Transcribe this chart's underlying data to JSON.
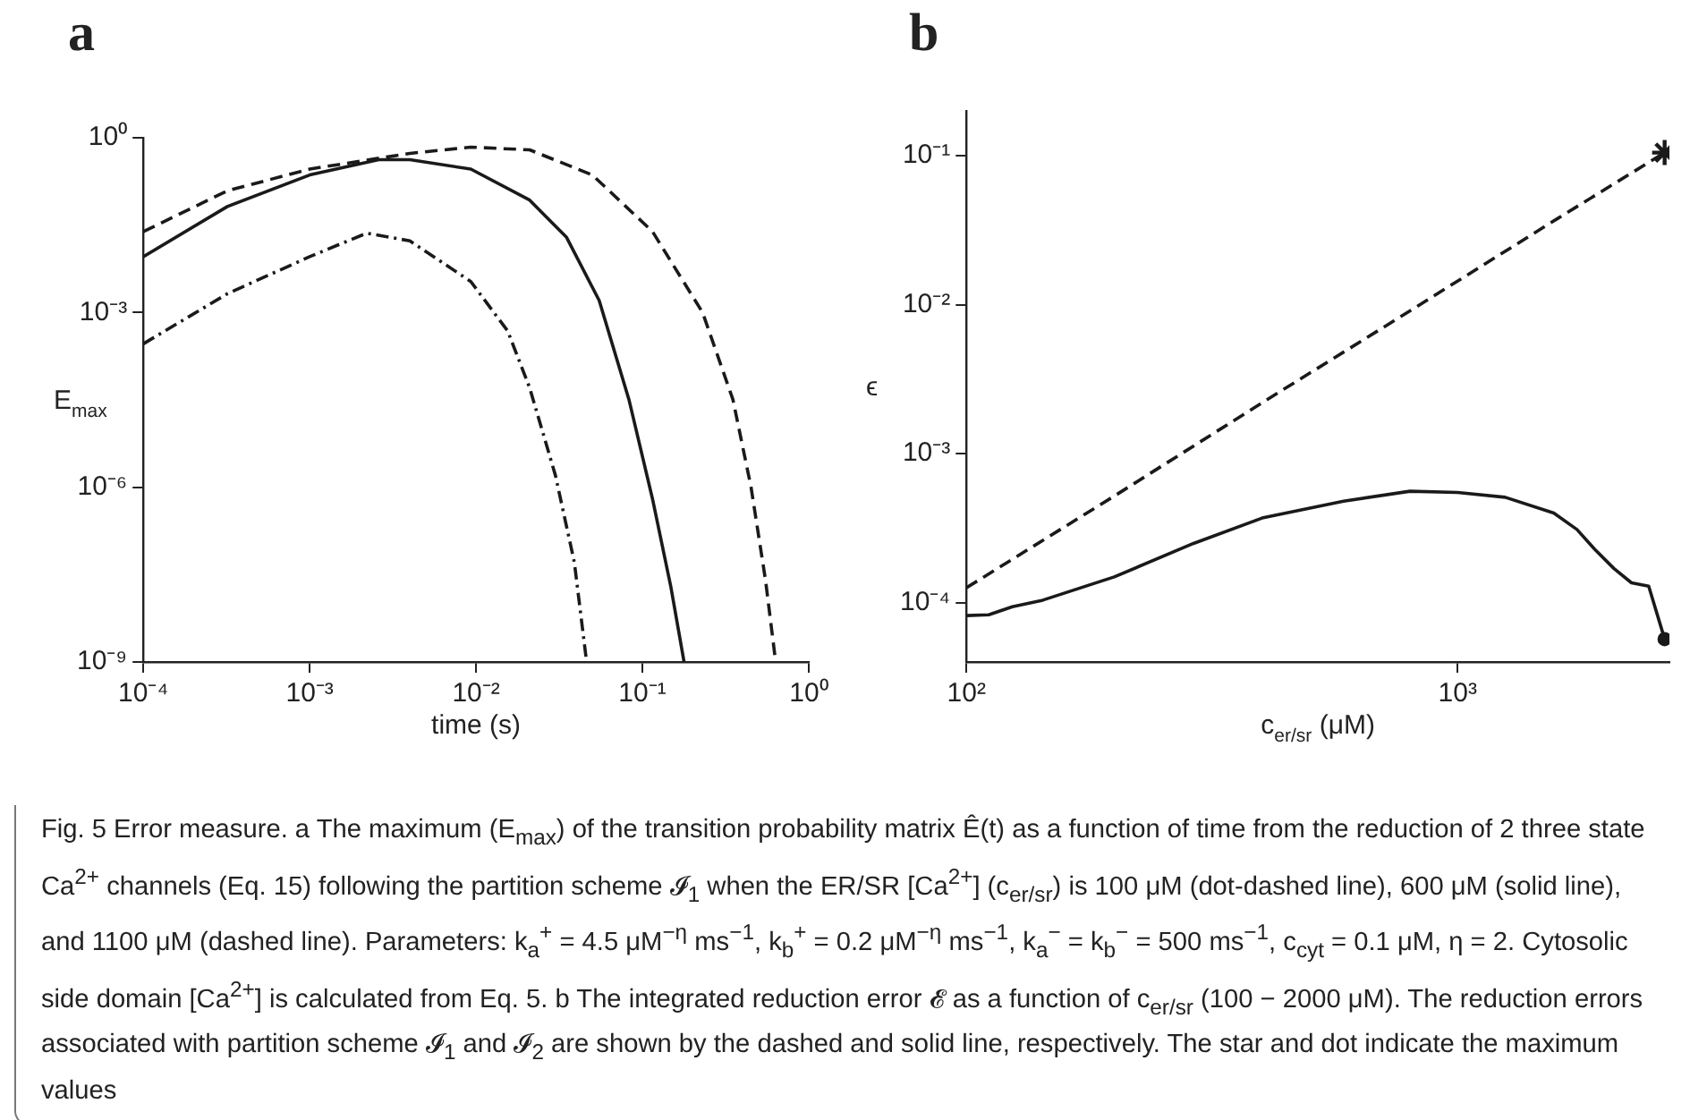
{
  "chart_data": [
    {
      "type": "line",
      "title": "a",
      "xlabel": "time (s)",
      "ylabel": "E$_{max}$",
      "log": "xy",
      "grid": false,
      "legend": false,
      "xlim": [
        0.0001,
        1
      ],
      "xticks": [
        {
          "value": 0.0001,
          "label": "10⁻⁴"
        },
        {
          "value": 0.001,
          "label": "10⁻³"
        },
        {
          "value": 0.01,
          "label": "10⁻²"
        },
        {
          "value": 0.1,
          "label": "10⁻¹"
        },
        {
          "value": 1,
          "label": "10⁰"
        }
      ],
      "ylim": [
        1e-09,
        1
      ],
      "yticks": [
        {
          "value": 1e-09,
          "label": "10⁻⁹"
        },
        {
          "value": 1e-06,
          "label": "10⁻⁶"
        },
        {
          "value": 0.001,
          "label": "10⁻³"
        },
        {
          "value": 1,
          "label": "10⁰"
        }
      ],
      "series": [
        {
          "color": "#1a1a1a",
          "line_style": "dashed",
          "x": [
            0.0001,
            0.00032,
            0.001,
            0.004,
            0.0093,
            0.021,
            0.05,
            0.115,
            0.23,
            0.35,
            0.45,
            0.55,
            0.63
          ],
          "values": [
            0.0245,
            0.123,
            0.29,
            0.54,
            0.69,
            0.62,
            0.23,
            0.0245,
            0.001,
            3.2e-05,
            1e-06,
            2.5e-08,
            1.1e-09
          ]
        },
        {
          "color": "#1a1a1a",
          "line_style": "solid",
          "x": [
            0.0001,
            0.00032,
            0.001,
            0.0026,
            0.004,
            0.0093,
            0.021,
            0.035,
            0.055,
            0.083,
            0.115,
            0.148,
            0.178
          ],
          "values": [
            0.0091,
            0.066,
            0.23,
            0.42,
            0.42,
            0.29,
            0.085,
            0.0195,
            0.0016,
            3.2e-05,
            6.3e-07,
            2e-08,
            1e-09
          ]
        },
        {
          "color": "#1a1a1a",
          "line_style": "dotted",
          "x": [
            0.0001,
            0.00032,
            0.001,
            0.0022,
            0.004,
            0.0093,
            0.0155,
            0.021,
            0.03,
            0.039,
            0.046
          ],
          "values": [
            0.00029,
            0.0021,
            0.0091,
            0.023,
            0.017,
            0.0034,
            0.00048,
            5.1e-05,
            1.6e-06,
            5.1e-08,
            1.1e-09
          ]
        }
      ],
      "annotations": [
        "Fig. 5 Error measure. a The maximum (E$_{max}$) of the transition probability matrix Ê(t) as a function of time from the reduction of 2 three state Ca$^{2+}$ channels (Eq. 15) following the partition scheme 𝓘$_{1}$ when the ER/SR [Ca$^{2+}$] (c$_{er/sr}$) is 100 μM (dot-dashed line), 600 μM (solid line), and 1100 μM (dashed line). Parameters: k$_{a}$$^{+}$ = 4.5 μM$^{−η}$ ms$^{−1}$, k$_{b}$$^{+}$ = 0.2 μM$^{−η}$ ms$^{−1}$, k$_{a}$$^{−}$ = k$_{b}$$^{−}$ = 500 ms$^{−1}$, c$_{cyt}$ = 0.1 μM, η = 2. Cytosolic side domain [Ca$^{2+}$] is calculated from Eq. 5. b The integrated reduction error 𝓔 as a function of c$_{er/sr}$ (100 − 2000 μM). The reduction errors associated with partition scheme 𝓘$_{1}$ and 𝓘$_{2}$ are shown by the dashed and solid line, respectively. The star and dot indicate the maximum values"
      ]
    },
    {
      "type": "line",
      "title": "b",
      "xlabel": "c$_{er/sr}$ (μM)",
      "ylabel": "ϵ",
      "log": "xy",
      "grid": false,
      "legend": false,
      "xlim": [
        100,
        2700
      ],
      "xticks": [
        {
          "value": 100,
          "label": "10²"
        },
        {
          "value": 1000,
          "label": "10³"
        }
      ],
      "ylim": [
        4e-05,
        0.2
      ],
      "yticks": [
        {
          "value": 0.0001,
          "label": "10⁻⁴"
        },
        {
          "value": 0.001,
          "label": "10⁻³"
        },
        {
          "value": 0.01,
          "label": "10⁻²"
        },
        {
          "value": 0.1,
          "label": "10⁻¹"
        }
      ],
      "series": [
        {
          "color": "#1a1a1a",
          "line_style": "dashed",
          "x": [
            100,
            200,
            400,
            800,
            1600,
            2640
          ],
          "values": [
            0.000126,
            0.00052,
            0.0022,
            0.0091,
            0.038,
            0.105
          ]
        },
        {
          "color": "#1a1a1a",
          "line_style": "solid",
          "x": [
            100,
            111,
            124,
            143,
            200,
            290,
            400,
            586,
            800,
            1000,
            1250,
            1570,
            1750,
            1910,
            2080,
            2260,
            2450,
            2640
          ],
          "values": [
            8.2e-05,
            8.3e-05,
            9.4e-05,
            0.000104,
            0.000149,
            0.00025,
            0.00037,
            0.00048,
            0.00056,
            0.00055,
            0.00051,
            0.0004,
            0.00031,
            0.000225,
            0.00017,
            0.000136,
            0.000129,
            5.7e-05
          ]
        },
        {
          "type": "scatter",
          "color": "#1a1a1a",
          "marker": "cross",
          "x": [
            2640
          ],
          "values": [
            0.105
          ]
        },
        {
          "type": "scatter",
          "color": "#1a1a1a",
          "marker": "circle",
          "x": [
            2640
          ],
          "values": [
            5.7e-05
          ]
        }
      ]
    }
  ]
}
